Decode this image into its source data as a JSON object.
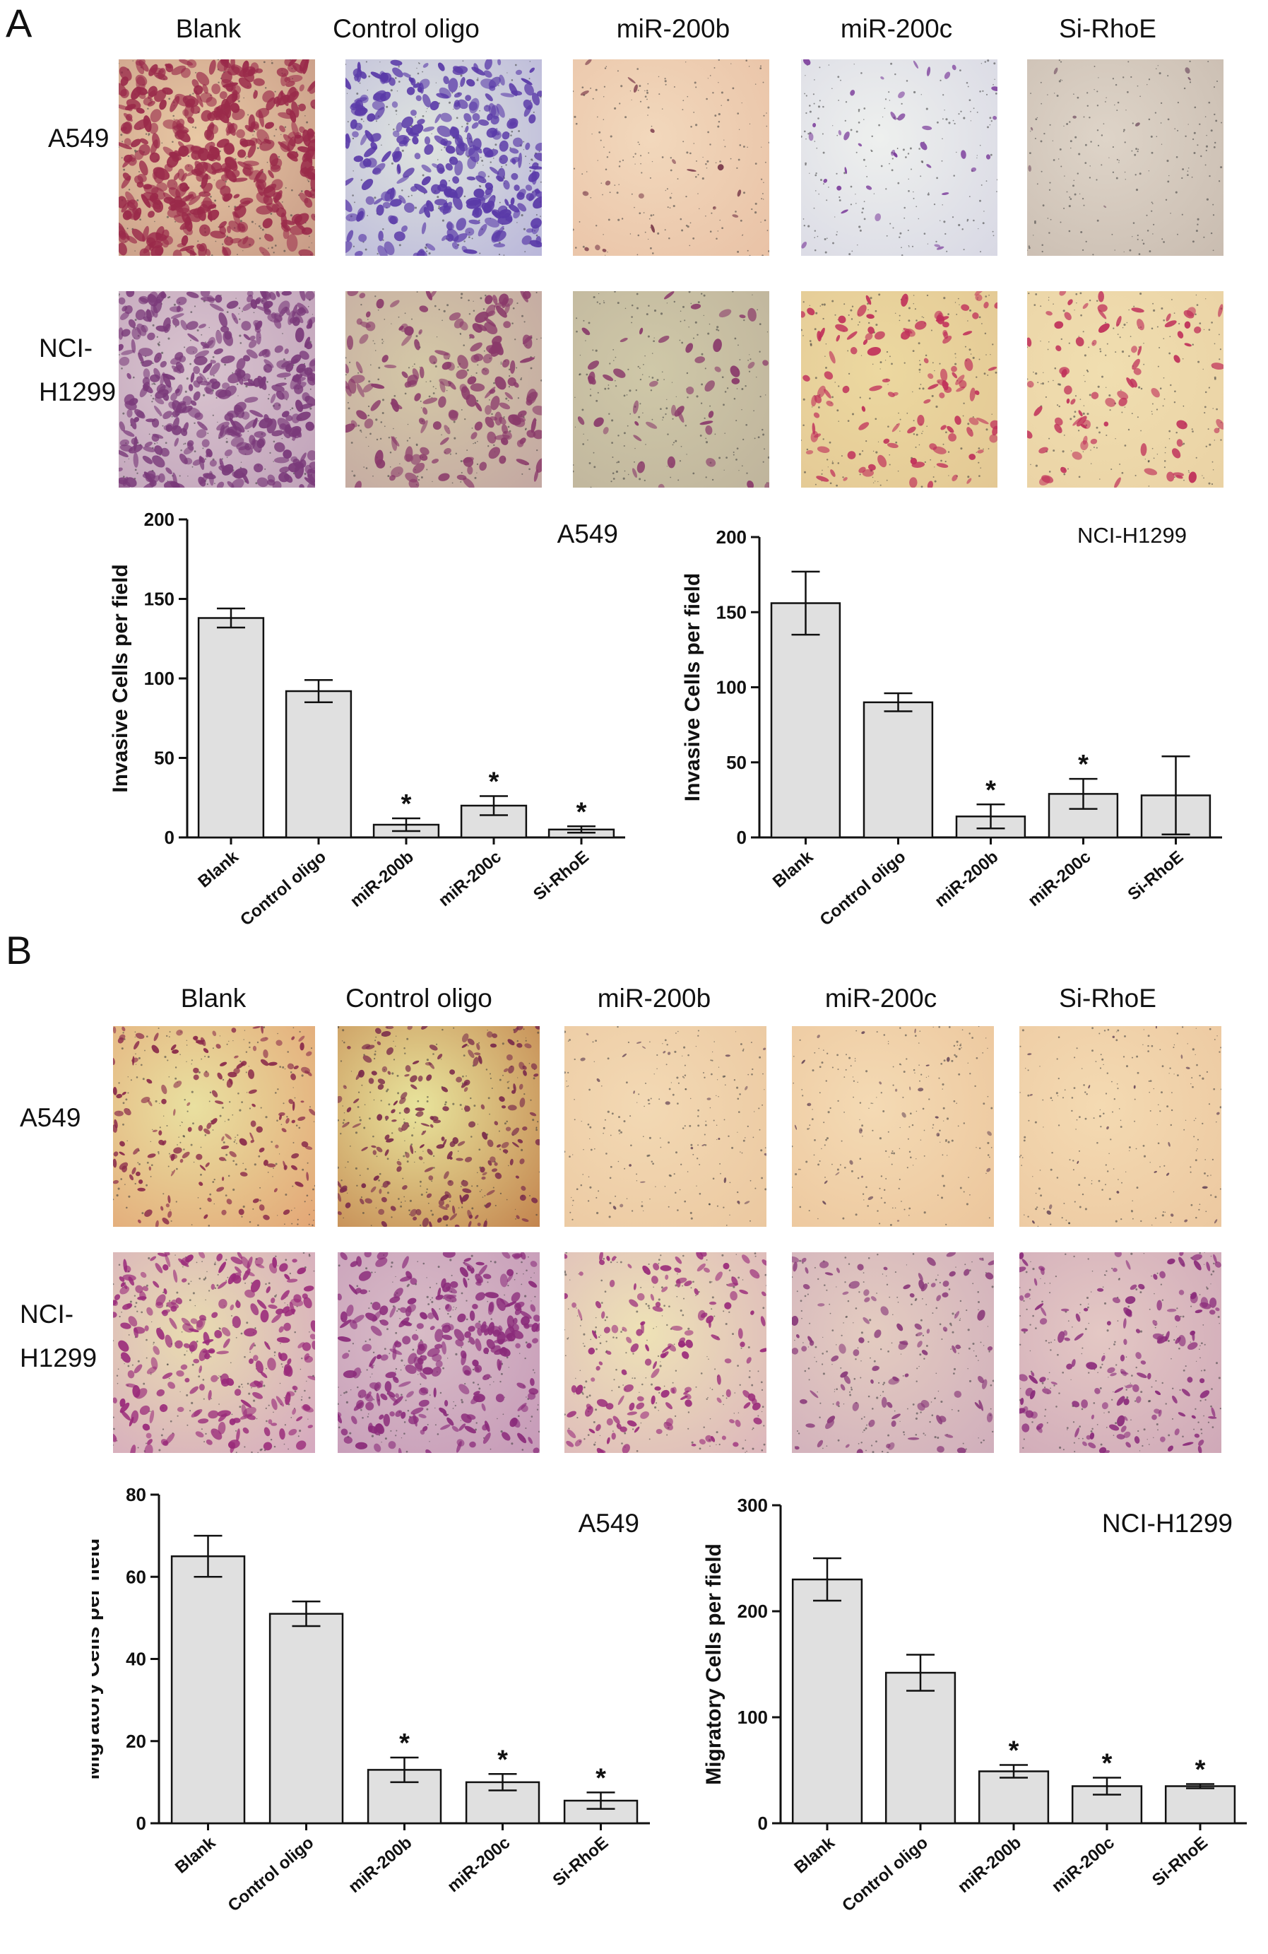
{
  "panels": [
    {
      "letter": "A",
      "columns": [
        "Blank",
        "Control oligo",
        "miR-200b",
        "miR-200c",
        "Si-RhoE"
      ],
      "rows": [
        "A549",
        "NCI-\nH1299"
      ]
    },
    {
      "letter": "B",
      "columns": [
        "Blank",
        "Control oligo",
        "miR-200b",
        "miR-200c",
        "Si-RhoE"
      ],
      "rows": [
        "A549",
        "NCI-\nH1299"
      ]
    }
  ],
  "chart_data": [
    {
      "type": "bar",
      "title": "A549",
      "ylabel": "Invasive Cells per field",
      "categories": [
        "Blank",
        "Control oligo",
        "miR-200b",
        "miR-200c",
        "Si-RhoE"
      ],
      "values": [
        138,
        92,
        8,
        20,
        5
      ],
      "errors": [
        6,
        7,
        4,
        6,
        2
      ],
      "significance": [
        "",
        "",
        "*",
        "*",
        "*"
      ],
      "ylim": [
        0,
        200
      ],
      "yticks": [
        "0",
        "50",
        "100",
        "150",
        "200"
      ]
    },
    {
      "type": "bar",
      "title": "NCI-H1299",
      "ylabel": "Invasive Cells per field",
      "categories": [
        "Blank",
        "Control oligo",
        "miR-200b",
        "miR-200c",
        "Si-RhoE"
      ],
      "values": [
        156,
        90,
        14,
        29,
        28
      ],
      "errors": [
        21,
        6,
        8,
        10,
        26
      ],
      "significance": [
        "",
        "",
        "*",
        "*",
        ""
      ],
      "ylim": [
        0,
        200
      ],
      "yticks": [
        "0",
        "50",
        "100",
        "150",
        "200"
      ]
    },
    {
      "type": "bar",
      "title": "A549",
      "ylabel": "Migratory  Cells per field",
      "categories": [
        "Blank",
        "Control oligo",
        "miR-200b",
        "miR-200c",
        "Si-RhoE"
      ],
      "values": [
        65,
        51,
        13,
        10,
        5.5
      ],
      "errors": [
        5,
        3,
        3,
        2,
        2
      ],
      "significance": [
        "",
        "",
        "*",
        "*",
        "*"
      ],
      "ylim": [
        0,
        80
      ],
      "yticks": [
        "0",
        "20",
        "40",
        "60",
        "80"
      ]
    },
    {
      "type": "bar",
      "title": "NCI-H1299",
      "ylabel": "Migratory Cells per field",
      "categories": [
        "Blank",
        "Control oligo",
        "miR-200b",
        "miR-200c",
        "Si-RhoE"
      ],
      "values": [
        230,
        142,
        49,
        35,
        35
      ],
      "errors": [
        20,
        17,
        6,
        8,
        2
      ],
      "significance": [
        "",
        "",
        "*",
        "*",
        "*"
      ],
      "ylim": [
        0,
        300
      ],
      "yticks": [
        "0",
        "100",
        "200",
        "300"
      ]
    }
  ]
}
